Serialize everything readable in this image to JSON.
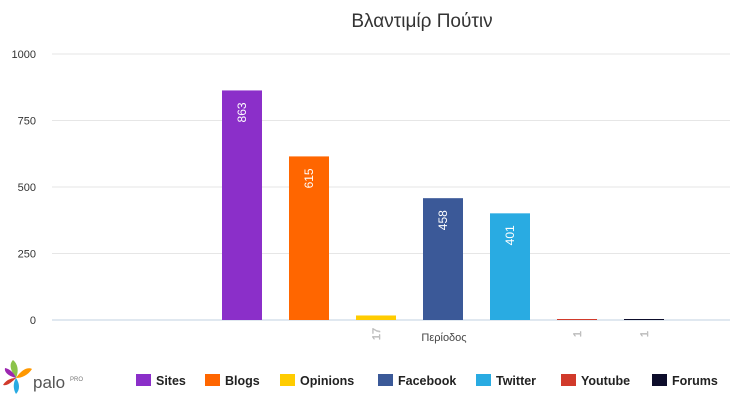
{
  "chart_data": {
    "type": "bar",
    "title": "Βλαντιμίρ Πούτιν",
    "xlabel": "Περίοδος",
    "ylabel": "",
    "ylim": [
      0,
      1000
    ],
    "yticks": [
      0,
      250,
      500,
      750,
      1000
    ],
    "grid": true,
    "legend_position": "bottom",
    "series": [
      {
        "name": "Sites",
        "value": 863,
        "color": "#8b2fc9"
      },
      {
        "name": "Blogs",
        "value": 615,
        "color": "#ff6600"
      },
      {
        "name": "Opinions",
        "value": 17,
        "color": "#ffcc00"
      },
      {
        "name": "Facebook",
        "value": 458,
        "color": "#3b5998"
      },
      {
        "name": "Twitter",
        "value": 401,
        "color": "#29abe2"
      },
      {
        "name": "Youtube",
        "value": 1,
        "color": "#d13a2b"
      },
      {
        "name": "Forums",
        "value": 1,
        "color": "#0d0d2b"
      }
    ]
  },
  "brand": {
    "name": "palo",
    "suffix": "PRO"
  }
}
